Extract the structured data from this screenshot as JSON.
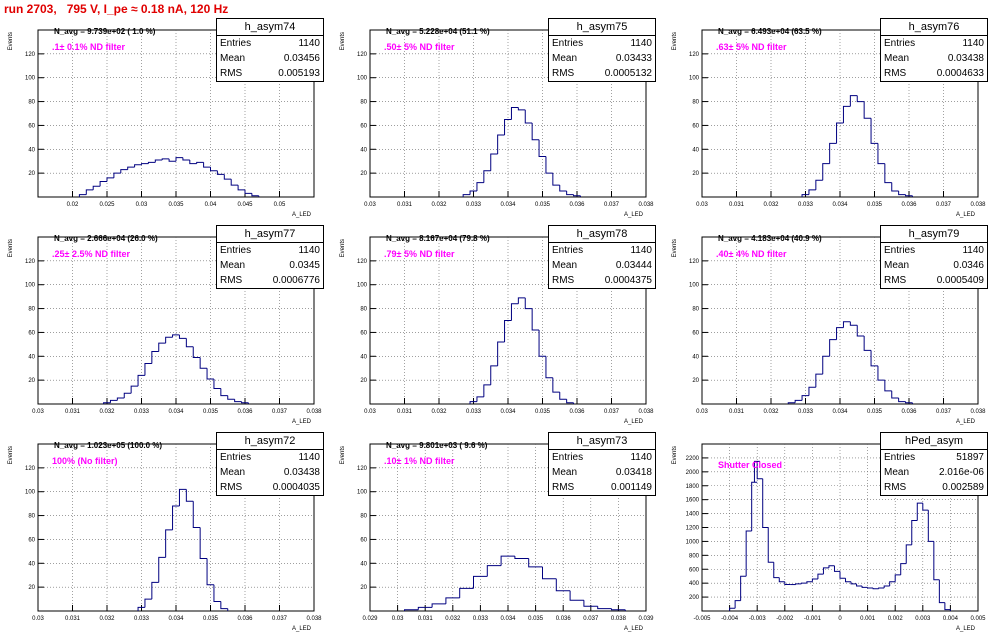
{
  "page": {
    "title": "run 2703,   795 V, I_pe ≈ 0.18 nA, 120 Hz"
  },
  "colors": {
    "title": "#e00000",
    "histogram_line": "#000080",
    "filter_text": "#ff00ff",
    "grid": "#666666"
  },
  "chart_data": [
    {
      "type": "histogram",
      "name": "h_asym74",
      "ylabel": "Events",
      "xlabel": "A_LED",
      "xlim": [
        0.015,
        0.055
      ],
      "ylim": [
        0,
        140
      ],
      "xticks": [
        "0.02",
        "0.025",
        "0.03",
        "0.035",
        "0.04",
        "0.045",
        "0.05"
      ],
      "yticks": [
        "20",
        "40",
        "60",
        "80",
        "100",
        "120"
      ],
      "navg": "N_avg = 9.739e+02 ( 1.0 %)",
      "filter": ".1± 0.1% ND filter",
      "stats": {
        "entries_label": "Entries",
        "entries": "1140",
        "mean_label": "Mean",
        "mean": "0.03456",
        "rms_label": "RMS",
        "rms": "0.005193"
      },
      "grid": true,
      "x": [
        0.0215,
        0.0225,
        0.0235,
        0.0245,
        0.0255,
        0.0265,
        0.0275,
        0.0285,
        0.0295,
        0.0305,
        0.0315,
        0.0325,
        0.0335,
        0.0345,
        0.0355,
        0.0365,
        0.0375,
        0.0385,
        0.0395,
        0.0405,
        0.0415,
        0.0425,
        0.0435,
        0.0445,
        0.0455,
        0.0465
      ],
      "values": [
        2,
        6,
        9,
        13,
        16,
        20,
        23,
        25,
        27,
        28,
        29,
        31,
        32,
        30,
        33,
        31,
        28,
        29,
        25,
        22,
        19,
        15,
        10,
        6,
        3,
        1
      ]
    },
    {
      "type": "histogram",
      "name": "h_asym75",
      "ylabel": "Events",
      "xlabel": "A_LED",
      "xlim": [
        0.03,
        0.038
      ],
      "ylim": [
        0,
        140
      ],
      "xticks": [
        "0.03",
        "0.031",
        "0.032",
        "0.033",
        "0.034",
        "0.035",
        "0.036",
        "0.037",
        "0.038"
      ],
      "yticks": [
        "20",
        "40",
        "60",
        "80",
        "100",
        "120"
      ],
      "navg": "N_avg = 5.228e+04 (51.1 %)",
      "filter": ".50± 5% ND filter",
      "stats": {
        "entries_label": "Entries",
        "entries": "1140",
        "mean_label": "Mean",
        "mean": "0.03433",
        "rms_label": "RMS",
        "rms": "0.0005132"
      },
      "grid": true,
      "x": [
        0.0328,
        0.033,
        0.0332,
        0.0334,
        0.0336,
        0.0338,
        0.034,
        0.0342,
        0.0344,
        0.0346,
        0.0348,
        0.035,
        0.0352,
        0.0354,
        0.0356,
        0.0358,
        0.036
      ],
      "values": [
        2,
        5,
        12,
        22,
        36,
        52,
        65,
        75,
        73,
        62,
        48,
        34,
        20,
        10,
        5,
        2,
        1
      ]
    },
    {
      "type": "histogram",
      "name": "h_asym76",
      "ylabel": "Events",
      "xlabel": "A_LED",
      "xlim": [
        0.03,
        0.038
      ],
      "ylim": [
        0,
        140
      ],
      "xticks": [
        "0.03",
        "0.031",
        "0.032",
        "0.033",
        "0.034",
        "0.035",
        "0.036",
        "0.037",
        "0.038"
      ],
      "yticks": [
        "20",
        "40",
        "60",
        "80",
        "100",
        "120"
      ],
      "navg": "N_avg = 6.493e+04 (63.5 %)",
      "filter": ".63± 5% ND filter",
      "stats": {
        "entries_label": "Entries",
        "entries": "1140",
        "mean_label": "Mean",
        "mean": "0.03438",
        "rms_label": "RMS",
        "rms": "0.0004633"
      },
      "grid": true,
      "x": [
        0.033,
        0.0332,
        0.0334,
        0.0336,
        0.0338,
        0.034,
        0.0342,
        0.0344,
        0.0346,
        0.0348,
        0.035,
        0.0352,
        0.0354,
        0.0356,
        0.0358,
        0.036
      ],
      "values": [
        2,
        6,
        14,
        28,
        45,
        62,
        76,
        85,
        80,
        66,
        45,
        28,
        12,
        5,
        2,
        1
      ]
    },
    {
      "type": "histogram",
      "name": "h_asym77",
      "ylabel": "Events",
      "xlabel": "A_LED",
      "xlim": [
        0.03,
        0.038
      ],
      "ylim": [
        0,
        140
      ],
      "xticks": [
        "0.03",
        "0.031",
        "0.032",
        "0.033",
        "0.034",
        "0.035",
        "0.036",
        "0.037",
        "0.038"
      ],
      "yticks": [
        "20",
        "40",
        "60",
        "80",
        "100",
        "120"
      ],
      "navg": "N_avg = 2.666e+04 (26.0 %)",
      "filter": ".25± 2.5% ND filter",
      "stats": {
        "entries_label": "Entries",
        "entries": "1140",
        "mean_label": "Mean",
        "mean": "0.0345",
        "rms_label": "RMS",
        "rms": "0.0006776"
      },
      "grid": true,
      "x": [
        0.032,
        0.0322,
        0.0324,
        0.0326,
        0.0328,
        0.033,
        0.0332,
        0.0334,
        0.0336,
        0.0338,
        0.034,
        0.0342,
        0.0344,
        0.0346,
        0.0348,
        0.035,
        0.0352,
        0.0354,
        0.0356,
        0.0358,
        0.036
      ],
      "values": [
        1,
        3,
        5,
        9,
        15,
        24,
        34,
        44,
        51,
        56,
        58,
        55,
        48,
        39,
        30,
        21,
        13,
        7,
        4,
        2,
        1
      ]
    },
    {
      "type": "histogram",
      "name": "h_asym78",
      "ylabel": "Events",
      "xlabel": "A_LED",
      "xlim": [
        0.03,
        0.038
      ],
      "ylim": [
        0,
        140
      ],
      "xticks": [
        "0.03",
        "0.031",
        "0.032",
        "0.033",
        "0.034",
        "0.035",
        "0.036",
        "0.037",
        "0.038"
      ],
      "yticks": [
        "20",
        "40",
        "60",
        "80",
        "100",
        "120"
      ],
      "navg": "N_avg = 8.167e+04 (79.8 %)",
      "filter": ".79± 5% ND filter",
      "stats": {
        "entries_label": "Entries",
        "entries": "1140",
        "mean_label": "Mean",
        "mean": "0.03444",
        "rms_label": "RMS",
        "rms": "0.0004375"
      },
      "grid": true,
      "x": [
        0.033,
        0.0332,
        0.0334,
        0.0336,
        0.0338,
        0.034,
        0.0342,
        0.0344,
        0.0346,
        0.0348,
        0.035,
        0.0352,
        0.0354,
        0.0356,
        0.0358
      ],
      "values": [
        2,
        6,
        16,
        32,
        52,
        70,
        84,
        89,
        80,
        62,
        40,
        22,
        10,
        4,
        1
      ]
    },
    {
      "type": "histogram",
      "name": "h_asym79",
      "ylabel": "Events",
      "xlabel": "A_LED",
      "xlim": [
        0.03,
        0.038
      ],
      "ylim": [
        0,
        140
      ],
      "xticks": [
        "0.03",
        "0.031",
        "0.032",
        "0.033",
        "0.034",
        "0.035",
        "0.036",
        "0.037",
        "0.038"
      ],
      "yticks": [
        "20",
        "40",
        "60",
        "80",
        "100",
        "120"
      ],
      "navg": "N_avg = 4.183e+04 (40.9 %)",
      "filter": ".40± 4% ND filter",
      "stats": {
        "entries_label": "Entries",
        "entries": "1140",
        "mean_label": "Mean",
        "mean": "0.0346",
        "rms_label": "RMS",
        "rms": "0.0005409"
      },
      "grid": true,
      "x": [
        0.0326,
        0.0328,
        0.033,
        0.0332,
        0.0334,
        0.0336,
        0.0338,
        0.034,
        0.0342,
        0.0344,
        0.0346,
        0.0348,
        0.035,
        0.0352,
        0.0354,
        0.0356,
        0.0358,
        0.036
      ],
      "values": [
        1,
        3,
        7,
        14,
        25,
        40,
        54,
        64,
        69,
        66,
        57,
        45,
        32,
        20,
        11,
        5,
        2,
        1
      ]
    },
    {
      "type": "histogram",
      "name": "h_asym72",
      "ylabel": "Events",
      "xlabel": "A_LED",
      "xlim": [
        0.03,
        0.038
      ],
      "ylim": [
        0,
        140
      ],
      "xticks": [
        "0.03",
        "0.031",
        "0.032",
        "0.033",
        "0.034",
        "0.035",
        "0.036",
        "0.037",
        "0.038"
      ],
      "yticks": [
        "20",
        "40",
        "60",
        "80",
        "100",
        "120"
      ],
      "navg": "N_avg = 1.023e+05 (100.0 %)",
      "filter": "100% (No filter)",
      "stats": {
        "entries_label": "Entries",
        "entries": "1140",
        "mean_label": "Mean",
        "mean": "0.03438",
        "rms_label": "RMS",
        "rms": "0.0004035"
      },
      "grid": true,
      "x": [
        0.033,
        0.0332,
        0.0334,
        0.0336,
        0.0338,
        0.034,
        0.0342,
        0.0344,
        0.0346,
        0.0348,
        0.035,
        0.0352,
        0.0354
      ],
      "values": [
        3,
        10,
        24,
        45,
        68,
        88,
        102,
        92,
        70,
        44,
        22,
        8,
        2
      ]
    },
    {
      "type": "histogram",
      "name": "h_asym73",
      "ylabel": "Events",
      "xlabel": "A_LED",
      "xlim": [
        0.029,
        0.039
      ],
      "ylim": [
        0,
        140
      ],
      "xticks": [
        "0.029",
        "0.03",
        "0.031",
        "0.032",
        "0.033",
        "0.034",
        "0.035",
        "0.036",
        "0.037",
        "0.038",
        "0.039"
      ],
      "yticks": [
        "20",
        "40",
        "60",
        "80",
        "100",
        "120"
      ],
      "navg": "N_avg = 9.801e+03 ( 9.6 %)",
      "filter": ".10± 1% ND filter",
      "stats": {
        "entries_label": "Entries",
        "entries": "1140",
        "mean_label": "Mean",
        "mean": "0.03418",
        "rms_label": "RMS",
        "rms": "0.001149"
      },
      "grid": true,
      "x": [
        0.0305,
        0.031,
        0.0315,
        0.032,
        0.0325,
        0.033,
        0.0335,
        0.034,
        0.0345,
        0.035,
        0.0355,
        0.036,
        0.0365,
        0.037,
        0.0375,
        0.038
      ],
      "values": [
        1,
        3,
        6,
        11,
        19,
        29,
        38,
        46,
        44,
        37,
        27,
        17,
        9,
        4,
        2,
        1
      ]
    },
    {
      "type": "histogram",
      "name": "hPed_asym",
      "ylabel": "Events",
      "xlabel": "A_LED",
      "xlim": [
        -0.005,
        0.005
      ],
      "ylim": [
        0,
        2400
      ],
      "xticks": [
        "-0.005",
        "-0.004",
        "-0.003",
        "-0.002",
        "-0.001",
        "0",
        "0.001",
        "0.002",
        "0.003",
        "0.004",
        "0.005"
      ],
      "yticks": [
        "200",
        "400",
        "600",
        "800",
        "1000",
        "1200",
        "1400",
        "1600",
        "1800",
        "2000",
        "2200"
      ],
      "navg": "",
      "filter": "Shutter Closed",
      "stats": {
        "entries_label": "Entries",
        "entries": "51897",
        "mean_label": "Mean",
        "mean": "2.016e-06",
        "rms_label": "RMS",
        "rms": "0.002589"
      },
      "grid": true,
      "x": [
        -0.0039,
        -0.0037,
        -0.0035,
        -0.0033,
        -0.0031,
        -0.003,
        -0.0029,
        -0.0027,
        -0.0025,
        -0.0023,
        -0.0021,
        -0.0019,
        -0.0017,
        -0.0015,
        -0.0013,
        -0.0011,
        -0.0009,
        -0.0007,
        -0.0005,
        -0.0003,
        -0.0001,
        0.0001,
        0.0003,
        0.0005,
        0.0007,
        0.0009,
        0.0011,
        0.0013,
        0.0015,
        0.0017,
        0.0019,
        0.0021,
        0.0023,
        0.0025,
        0.0027,
        0.0029,
        0.0031,
        0.0033,
        0.0035,
        0.0037,
        0.0039
      ],
      "values": [
        40,
        150,
        500,
        1150,
        1850,
        2150,
        1900,
        1200,
        700,
        480,
        420,
        380,
        380,
        390,
        400,
        420,
        460,
        530,
        620,
        650,
        570,
        470,
        420,
        390,
        360,
        340,
        330,
        320,
        330,
        360,
        420,
        520,
        680,
        950,
        1300,
        1550,
        1450,
        1000,
        450,
        120,
        20
      ]
    }
  ]
}
